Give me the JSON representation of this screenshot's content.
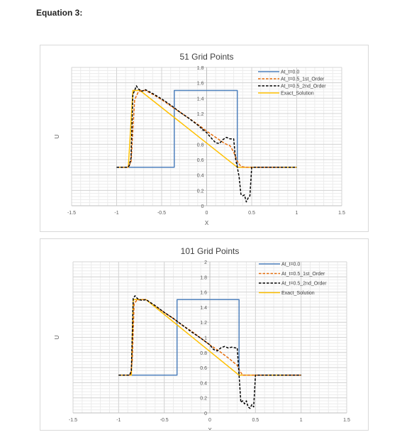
{
  "page": {
    "heading": "Equation 3:"
  },
  "chart_data": [
    {
      "type": "line",
      "title": "51 Grid Points",
      "xlabel": "X",
      "ylabel": "U",
      "xlim": [
        -1.5,
        1.5
      ],
      "ylim": [
        0,
        1.8
      ],
      "x_ticks": [
        "-1.5",
        "-1",
        "-0.5",
        "0",
        "0.5",
        "1",
        "1.5"
      ],
      "y_ticks": [
        "0",
        "0.2",
        "0.4",
        "0.6",
        "0.8",
        "1",
        "1.2",
        "1.4",
        "1.6",
        "1.8"
      ],
      "grid": true,
      "legend_position": "top-right",
      "series": [
        {
          "name": "At_t=0.0",
          "color": "#4f81bd",
          "dash": "solid",
          "x": [
            -1.0,
            -0.36,
            -0.36,
            0.34,
            0.34,
            1.0
          ],
          "y": [
            0.5,
            0.5,
            1.5,
            1.5,
            0.5,
            0.5
          ]
        },
        {
          "name": "At_t=0.5_1st_Order",
          "color": "#e46c0a",
          "dash": "dash",
          "x": [
            -1.0,
            -0.88,
            -0.84,
            -0.8,
            -0.76,
            -0.72,
            -0.68,
            -0.6,
            -0.5,
            -0.4,
            -0.3,
            -0.2,
            -0.1,
            0.0,
            0.1,
            0.2,
            0.26,
            0.3,
            0.34,
            0.38,
            0.44,
            0.5,
            1.0
          ],
          "y": [
            0.5,
            0.5,
            0.56,
            1.38,
            1.48,
            1.5,
            1.5,
            1.45,
            1.38,
            1.3,
            1.22,
            1.14,
            1.06,
            0.97,
            0.89,
            0.81,
            0.78,
            0.7,
            0.58,
            0.51,
            0.5,
            0.5,
            0.5
          ]
        },
        {
          "name": "At_t=0.5_2nd_Order",
          "color": "#000000",
          "dash": "dash",
          "x": [
            -1.0,
            -0.88,
            -0.86,
            -0.84,
            -0.82,
            -0.8,
            -0.78,
            -0.76,
            -0.72,
            -0.68,
            -0.6,
            -0.5,
            -0.4,
            -0.3,
            -0.2,
            -0.1,
            0.0,
            0.06,
            0.1,
            0.14,
            0.18,
            0.22,
            0.26,
            0.3,
            0.32,
            0.34,
            0.36,
            0.38,
            0.4,
            0.42,
            0.44,
            0.46,
            0.48,
            0.5,
            1.0
          ],
          "y": [
            0.5,
            0.5,
            0.52,
            0.62,
            1.45,
            1.5,
            1.56,
            1.52,
            1.49,
            1.51,
            1.46,
            1.39,
            1.31,
            1.22,
            1.14,
            1.05,
            0.95,
            0.87,
            0.82,
            0.81,
            0.86,
            0.89,
            0.87,
            0.87,
            0.62,
            0.5,
            0.38,
            0.15,
            0.13,
            0.14,
            0.05,
            0.1,
            0.13,
            0.5,
            0.5
          ]
        },
        {
          "name": "Exact_Solution",
          "color": "#ffc000",
          "dash": "solid",
          "x": [
            -1.0,
            -0.87,
            -0.82,
            -0.74,
            0.34,
            1.0
          ],
          "y": [
            0.5,
            0.5,
            1.5,
            1.5,
            0.5,
            0.5
          ]
        }
      ]
    },
    {
      "type": "line",
      "title": "101 Grid Points",
      "xlabel": "X",
      "ylabel": "U",
      "xlim": [
        -1.5,
        1.5
      ],
      "ylim": [
        0,
        2
      ],
      "x_ticks": [
        "-1.5",
        "-1",
        "-0.5",
        "0",
        "0.5",
        "1",
        "1.5"
      ],
      "y_ticks": [
        "0",
        "0.2",
        "0.4",
        "0.6",
        "0.8",
        "1",
        "1.2",
        "1.4",
        "1.6",
        "1.8",
        "2"
      ],
      "grid": true,
      "legend_position": "top-right",
      "series": [
        {
          "name": "At_t=0.0",
          "color": "#4f81bd",
          "dash": "solid",
          "x": [
            -1.0,
            -0.36,
            -0.36,
            0.32,
            0.32,
            1.0
          ],
          "y": [
            0.5,
            0.5,
            1.5,
            1.5,
            0.5,
            0.5
          ]
        },
        {
          "name": "At_t=0.5_1st_Order",
          "color": "#e46c0a",
          "dash": "dash",
          "x": [
            -1.0,
            -0.87,
            -0.85,
            -0.83,
            -0.8,
            -0.76,
            -0.7,
            -0.6,
            -0.5,
            -0.4,
            -0.3,
            -0.2,
            -0.1,
            0.0,
            0.1,
            0.2,
            0.3,
            0.33,
            0.36,
            0.4,
            1.0
          ],
          "y": [
            0.5,
            0.5,
            0.7,
            1.45,
            1.49,
            1.5,
            1.5,
            1.42,
            1.33,
            1.25,
            1.16,
            1.08,
            0.99,
            0.9,
            0.82,
            0.73,
            0.63,
            0.55,
            0.5,
            0.5,
            0.5
          ]
        },
        {
          "name": "At_t=0.5_2nd_Order",
          "color": "#000000",
          "dash": "dash",
          "x": [
            -1.0,
            -0.88,
            -0.86,
            -0.84,
            -0.82,
            -0.8,
            -0.78,
            -0.74,
            -0.7,
            -0.6,
            -0.5,
            -0.4,
            -0.3,
            -0.2,
            -0.1,
            0.0,
            0.04,
            0.08,
            0.12,
            0.16,
            0.2,
            0.24,
            0.28,
            0.3,
            0.32,
            0.34,
            0.36,
            0.38,
            0.4,
            0.42,
            0.44,
            0.46,
            0.48,
            0.5,
            1.0
          ],
          "y": [
            0.5,
            0.5,
            0.56,
            1.52,
            1.55,
            1.52,
            1.5,
            1.49,
            1.5,
            1.42,
            1.33,
            1.25,
            1.16,
            1.07,
            0.99,
            0.9,
            0.84,
            0.82,
            0.86,
            0.88,
            0.86,
            0.87,
            0.86,
            0.86,
            0.5,
            0.14,
            0.16,
            0.12,
            0.16,
            0.08,
            0.06,
            0.11,
            0.08,
            0.5,
            0.5
          ]
        },
        {
          "name": "Exact_Solution",
          "color": "#ffc000",
          "dash": "solid",
          "x": [
            -1.0,
            -0.86,
            -0.84,
            -0.7,
            0.32,
            1.0
          ],
          "y": [
            0.5,
            0.5,
            1.5,
            1.5,
            0.5,
            0.5
          ]
        }
      ]
    }
  ]
}
